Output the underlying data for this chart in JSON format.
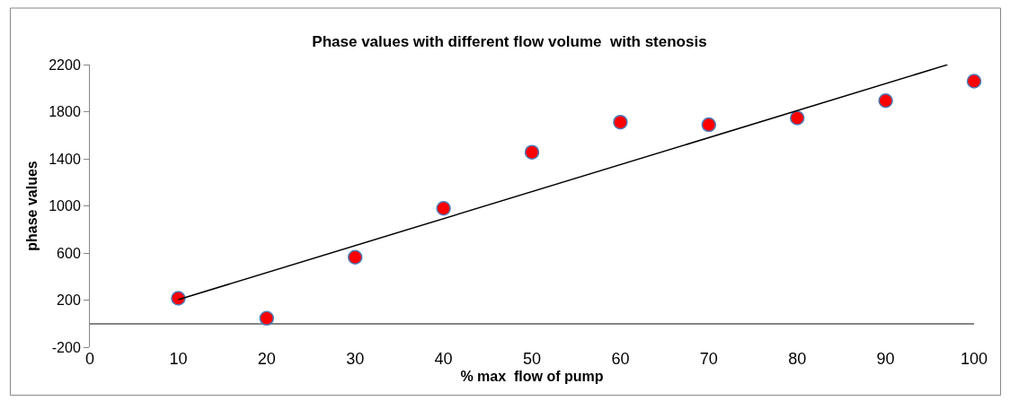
{
  "chart_data": {
    "type": "scatter",
    "title": "Phase values with different flow volume  with stenosis",
    "xlabel": "% max  flow of pump",
    "ylabel": "phase values",
    "x": [
      10,
      20,
      30,
      40,
      50,
      60,
      70,
      80,
      90,
      100
    ],
    "series": [
      {
        "type": "scatter",
        "marker": "circle",
        "color": "#ff0000",
        "values": [
          215,
          45,
          564,
          979,
          1456,
          1711,
          1689,
          1747,
          1893,
          2059
        ]
      },
      {
        "type": "line",
        "marker": "none",
        "color": "#000000",
        "x": [
          10,
          97
        ],
        "values": [
          204,
          2199
        ]
      }
    ],
    "xlim": [
      0,
      100
    ],
    "xticks": [
      0,
      10,
      20,
      30,
      40,
      50,
      60,
      70,
      80,
      90,
      100
    ],
    "ylim": [
      -200,
      2200
    ],
    "yticks": [
      -200,
      200,
      600,
      1000,
      1400,
      1800,
      2200
    ],
    "grid": false,
    "legend": false
  }
}
